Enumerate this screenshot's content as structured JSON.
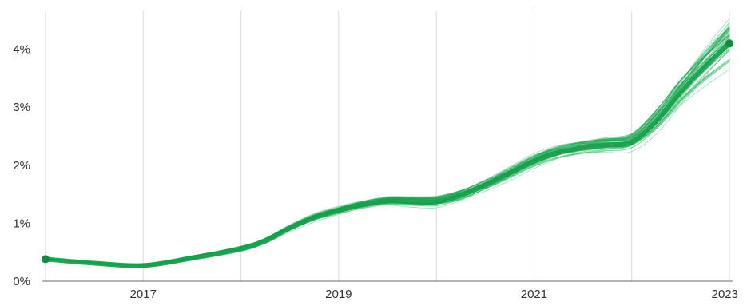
{
  "chart_data": {
    "type": "line",
    "title": "",
    "xlabel": "",
    "ylabel": "",
    "x_domain": [
      2016.0,
      2023.0
    ],
    "x_ticks": [
      2016,
      2017,
      2018,
      2019,
      2020,
      2021,
      2022,
      2023
    ],
    "x_tick_labels": [
      "2017",
      "2019",
      "2021",
      "2023"
    ],
    "x_tick_label_values": [
      2017,
      2019,
      2021,
      2023
    ],
    "ylim": [
      0,
      4.6
    ],
    "y_ticks": [
      0,
      1,
      2,
      3,
      4
    ],
    "y_tick_labels": [
      "0%",
      "1%",
      "2%",
      "3%",
      "4%"
    ],
    "grid": "vertical",
    "series_color": "#17a34a",
    "ensemble_count": 40,
    "median_series": {
      "x": [
        2016.0,
        2016.5,
        2017.0,
        2017.5,
        2018.0,
        2018.25,
        2018.5,
        2018.75,
        2019.0,
        2019.25,
        2019.5,
        2019.75,
        2020.0,
        2020.25,
        2020.5,
        2020.75,
        2021.0,
        2021.25,
        2021.5,
        2021.75,
        2022.0,
        2022.25,
        2022.5,
        2022.75,
        2023.0
      ],
      "y": [
        0.38,
        0.31,
        0.27,
        0.4,
        0.56,
        0.7,
        0.92,
        1.1,
        1.22,
        1.32,
        1.38,
        1.37,
        1.37,
        1.48,
        1.66,
        1.86,
        2.07,
        2.22,
        2.3,
        2.35,
        2.4,
        2.75,
        3.25,
        3.7,
        4.1
      ]
    }
  }
}
